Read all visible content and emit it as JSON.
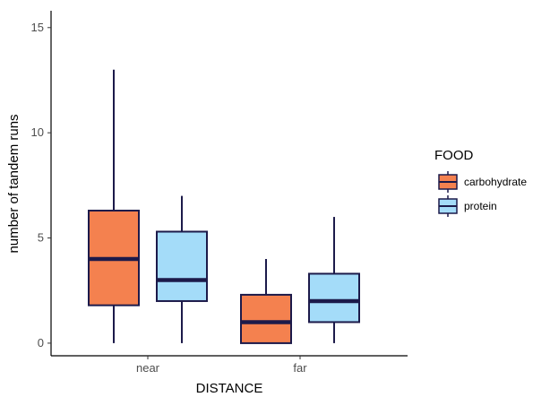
{
  "chart_data": {
    "type": "boxplot",
    "title": "",
    "xlabel": "DISTANCE",
    "ylabel": "number of tandem runs",
    "categories": [
      "near",
      "far"
    ],
    "ylim": [
      -0.6,
      15.8
    ],
    "yticks": [
      0,
      5,
      10,
      15
    ],
    "grid": false,
    "legend": {
      "title": "FOOD",
      "placement": "right"
    },
    "series": [
      {
        "name": "carbohydrate",
        "color": "#f4814f",
        "boxes": [
          {
            "category": "near",
            "min": 0,
            "q1": 1.8,
            "median": 4,
            "q3": 6.3,
            "max": 13
          },
          {
            "category": "far",
            "min": 0,
            "q1": 0,
            "median": 1,
            "q3": 2.3,
            "max": 4
          }
        ]
      },
      {
        "name": "protein",
        "color": "#a4dcf9",
        "boxes": [
          {
            "category": "near",
            "min": 0,
            "q1": 2,
            "median": 3,
            "q3": 5.3,
            "max": 7
          },
          {
            "category": "far",
            "min": 0,
            "q1": 1,
            "median": 2,
            "q3": 3.3,
            "max": 6
          }
        ]
      }
    ],
    "line_color": "#1c1a4a"
  }
}
